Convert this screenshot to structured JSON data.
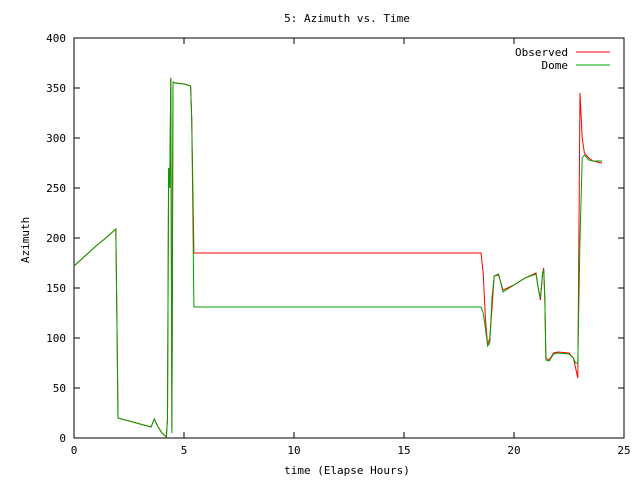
{
  "chart_data": {
    "type": "line",
    "title": "5: Azimuth vs. Time",
    "xlabel": "time (Elapse Hours)",
    "ylabel": "Azimuth",
    "xlim": [
      0,
      25
    ],
    "ylim": [
      0,
      400
    ],
    "x_ticks": [
      0,
      5,
      10,
      15,
      20,
      25
    ],
    "y_ticks": [
      0,
      50,
      100,
      150,
      200,
      250,
      300,
      350,
      400
    ],
    "grid": false,
    "legend_position": "top-right",
    "series": [
      {
        "name": "Observed",
        "color": "#ff0000",
        "points": [
          [
            0.0,
            172
          ],
          [
            0.5,
            182
          ],
          [
            1.0,
            192
          ],
          [
            1.5,
            201
          ],
          [
            1.9,
            209
          ],
          [
            1.95,
            120
          ],
          [
            2.0,
            20
          ],
          [
            2.5,
            17
          ],
          [
            3.0,
            14
          ],
          [
            3.5,
            11
          ],
          [
            3.65,
            19
          ],
          [
            3.8,
            12
          ],
          [
            4.0,
            5
          ],
          [
            4.2,
            1
          ],
          [
            4.25,
            20
          ],
          [
            4.3,
            270
          ],
          [
            4.35,
            250
          ],
          [
            4.4,
            360
          ],
          [
            4.45,
            10
          ],
          [
            4.5,
            356
          ],
          [
            4.6,
            355
          ],
          [
            5.0,
            354
          ],
          [
            5.3,
            352
          ],
          [
            5.35,
            320
          ],
          [
            5.4,
            255
          ],
          [
            5.45,
            185
          ],
          [
            6.0,
            185
          ],
          [
            10.0,
            185
          ],
          [
            15.0,
            185
          ],
          [
            18.5,
            185
          ],
          [
            18.6,
            165
          ],
          [
            18.7,
            120
          ],
          [
            18.8,
            93
          ],
          [
            18.9,
            100
          ],
          [
            19.0,
            130
          ],
          [
            19.1,
            162
          ],
          [
            19.3,
            163
          ],
          [
            19.5,
            148
          ],
          [
            20.0,
            153
          ],
          [
            20.5,
            160
          ],
          [
            21.0,
            165
          ],
          [
            21.1,
            150
          ],
          [
            21.2,
            138
          ],
          [
            21.3,
            165
          ],
          [
            21.35,
            170
          ],
          [
            21.4,
            140
          ],
          [
            21.45,
            80
          ],
          [
            21.6,
            78
          ],
          [
            21.8,
            85
          ],
          [
            22.0,
            86
          ],
          [
            22.5,
            85
          ],
          [
            22.7,
            80
          ],
          [
            22.8,
            70
          ],
          [
            22.9,
            60
          ],
          [
            23.0,
            345
          ],
          [
            23.1,
            300
          ],
          [
            23.2,
            285
          ],
          [
            23.4,
            280
          ],
          [
            23.6,
            277
          ],
          [
            24.0,
            275
          ]
        ]
      },
      {
        "name": "Dome",
        "color": "#00a000",
        "points": [
          [
            0.0,
            172
          ],
          [
            0.5,
            182
          ],
          [
            1.0,
            192
          ],
          [
            1.5,
            201
          ],
          [
            1.9,
            209
          ],
          [
            1.95,
            120
          ],
          [
            2.0,
            20
          ],
          [
            2.5,
            17
          ],
          [
            3.0,
            14
          ],
          [
            3.5,
            11
          ],
          [
            3.65,
            19
          ],
          [
            3.8,
            12
          ],
          [
            4.0,
            5
          ],
          [
            4.2,
            1
          ],
          [
            4.25,
            20
          ],
          [
            4.3,
            270
          ],
          [
            4.35,
            250
          ],
          [
            4.4,
            360
          ],
          [
            4.45,
            5
          ],
          [
            4.5,
            356
          ],
          [
            4.6,
            355
          ],
          [
            5.0,
            354
          ],
          [
            5.3,
            352
          ],
          [
            5.35,
            320
          ],
          [
            5.4,
            230
          ],
          [
            5.45,
            131
          ],
          [
            6.0,
            131
          ],
          [
            10.0,
            131
          ],
          [
            15.0,
            131
          ],
          [
            18.5,
            131
          ],
          [
            18.6,
            125
          ],
          [
            18.7,
            110
          ],
          [
            18.8,
            92
          ],
          [
            18.9,
            95
          ],
          [
            19.0,
            140
          ],
          [
            19.1,
            162
          ],
          [
            19.3,
            164
          ],
          [
            19.5,
            146
          ],
          [
            20.0,
            153
          ],
          [
            20.5,
            160
          ],
          [
            21.0,
            164
          ],
          [
            21.1,
            150
          ],
          [
            21.2,
            140
          ],
          [
            21.3,
            165
          ],
          [
            21.35,
            168
          ],
          [
            21.4,
            140
          ],
          [
            21.45,
            78
          ],
          [
            21.6,
            77
          ],
          [
            21.8,
            84
          ],
          [
            22.0,
            85
          ],
          [
            22.5,
            84
          ],
          [
            22.7,
            80
          ],
          [
            22.8,
            75
          ],
          [
            22.9,
            75
          ],
          [
            23.0,
            200
          ],
          [
            23.1,
            280
          ],
          [
            23.2,
            283
          ],
          [
            23.4,
            278
          ],
          [
            23.6,
            277
          ],
          [
            24.0,
            277
          ]
        ]
      }
    ]
  }
}
